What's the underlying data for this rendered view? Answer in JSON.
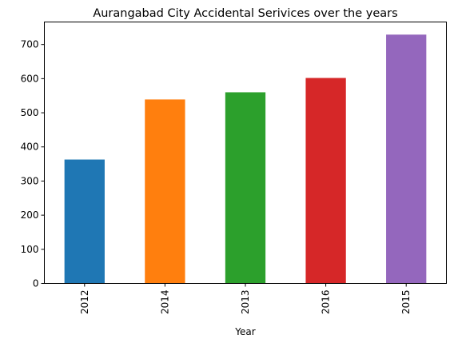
{
  "chart_data": {
    "type": "bar",
    "title": "Aurangabad City Accidental Serivices over the years",
    "xlabel": "Year",
    "ylabel": "",
    "categories": [
      "2012",
      "2014",
      "2013",
      "2016",
      "2015"
    ],
    "values": [
      363,
      539,
      560,
      602,
      729
    ],
    "colors": [
      "#1f77b4",
      "#ff7f0e",
      "#2ca02c",
      "#d62728",
      "#9467bd"
    ],
    "yticks": [
      0,
      100,
      200,
      300,
      400,
      500,
      600,
      700
    ],
    "ylim": [
      0,
      766
    ],
    "grid": false,
    "legend": "none"
  }
}
